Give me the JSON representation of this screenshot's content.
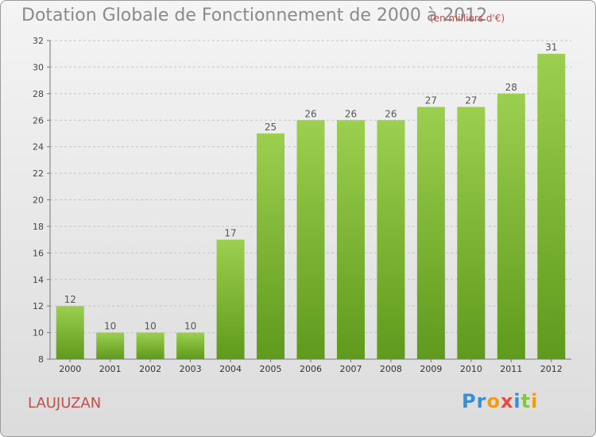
{
  "chart_data": {
    "type": "bar",
    "title": "Dotation Globale de Fonctionnement de 2000 à 2012",
    "subtitle": "(en milliers d'€)",
    "categories": [
      "2000",
      "2001",
      "2002",
      "2003",
      "2004",
      "2005",
      "2006",
      "2007",
      "2008",
      "2009",
      "2010",
      "2011",
      "2012"
    ],
    "values": [
      12,
      10,
      10,
      10,
      17,
      25,
      26,
      26,
      26,
      27,
      27,
      28,
      31
    ],
    "ylim": [
      8,
      32
    ],
    "yticks": [
      8,
      10,
      12,
      14,
      16,
      18,
      20,
      22,
      24,
      26,
      28,
      30,
      32
    ],
    "grid": true,
    "bar_color": "#7cb92e",
    "label_color": "#555555"
  },
  "place": "LAUJUZAN",
  "logo": {
    "letters": [
      "P",
      "r",
      "o",
      "x",
      "i",
      "t",
      "i"
    ],
    "colors": [
      "#3a8ed6",
      "#3a8ed6",
      "#f39c12",
      "#e74c3c",
      "#3a8ed6",
      "#8bc34a",
      "#f39c12"
    ]
  }
}
